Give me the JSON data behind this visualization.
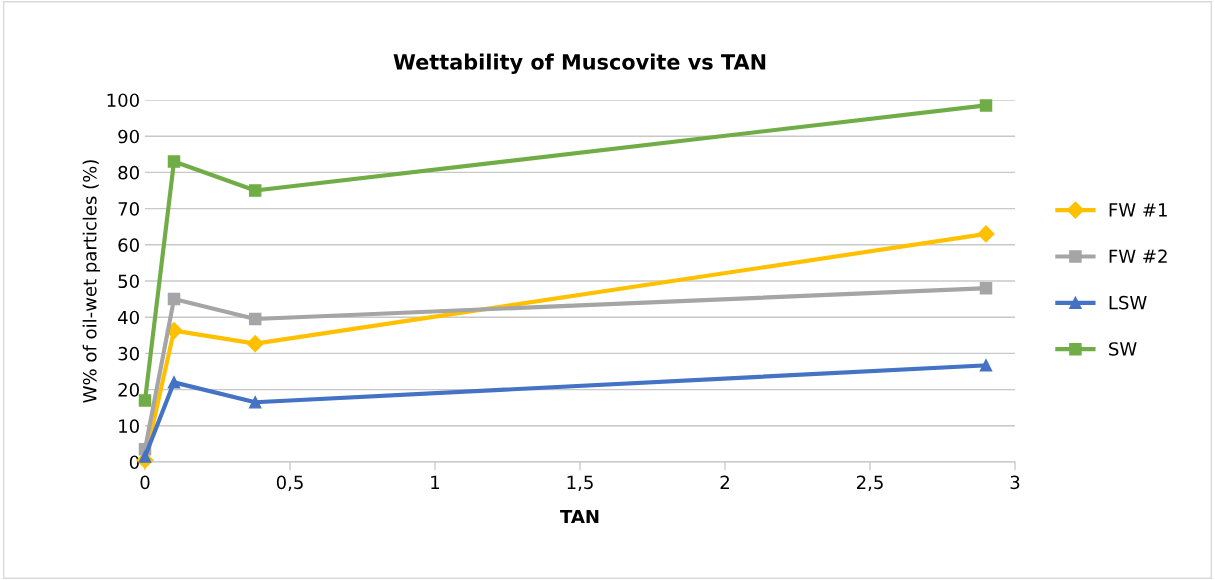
{
  "chart_data": {
    "type": "line",
    "title": "Wettability of Muscovite vs TAN",
    "xlabel": "TAN",
    "ylabel": "W% of oil-wet particles (%)",
    "x": [
      0,
      0.1,
      0.38,
      2.9
    ],
    "series": [
      {
        "name": "FW #1",
        "color": "#ffc000",
        "marker": "diamond",
        "values": [
          0.5,
          36.3,
          32.7,
          63
        ]
      },
      {
        "name": "FW #2",
        "color": "#a5a5a5",
        "marker": "square",
        "values": [
          3.5,
          45,
          39.5,
          48
        ]
      },
      {
        "name": "LSW",
        "color": "#4472c4",
        "marker": "triangle",
        "values": [
          1.5,
          22,
          16.5,
          26.7
        ]
      },
      {
        "name": "SW",
        "color": "#70ad47",
        "marker": "square",
        "values": [
          17,
          83,
          75,
          98.5
        ]
      }
    ],
    "xlim": [
      0,
      3
    ],
    "xticks": [
      0,
      {
        "value": 0.5,
        "label": "0,5"
      },
      1,
      {
        "value": 1.5,
        "label": "1,5"
      },
      2,
      {
        "value": 2.5,
        "label": "2,5"
      },
      3
    ],
    "ylim": [
      0,
      100
    ],
    "yticks": [
      0,
      10,
      20,
      30,
      40,
      50,
      60,
      70,
      80,
      90,
      100
    ],
    "grid": "y",
    "legend": "right",
    "line_style": "solid"
  }
}
